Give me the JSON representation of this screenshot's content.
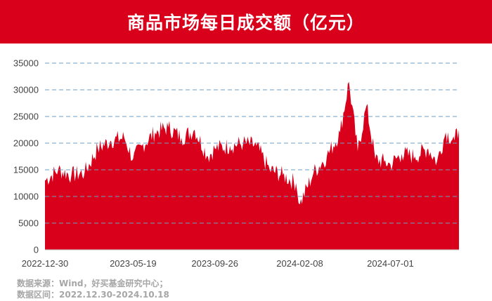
{
  "title": "商品市场每日成交额（亿元）",
  "source_lines": [
    "数据来源：Wind，好买基金研究中心；",
    "数据区间：2022.12.30-2024.10.18"
  ],
  "colors": {
    "title_bg": "#d9001b",
    "area": "#d9001b",
    "grid": "#6f9fc0",
    "axis_text": "#444444",
    "source_text": "#a6a6a6"
  },
  "chart_data": {
    "type": "area",
    "title": "商品市场每日成交额（亿元）",
    "xlabel": "",
    "ylabel": "",
    "ylim": [
      0,
      35000
    ],
    "y_ticks": [
      0,
      5000,
      10000,
      15000,
      20000,
      25000,
      30000,
      35000
    ],
    "x_tick_labels": [
      "2022-12-30",
      "2023-05-19",
      "2023-09-26",
      "2024-02-08",
      "2024-07-01"
    ],
    "x_range": [
      "2022-12-30",
      "2024-10-18"
    ],
    "grid": "horizontal dashed",
    "legend": "none",
    "series": [
      {
        "x": [
          "2022-12-30",
          "2023-01-20",
          "2023-02-10",
          "2023-03-03",
          "2023-03-24",
          "2023-04-14",
          "2023-05-05",
          "2023-05-19",
          "2023-06-02",
          "2023-06-23",
          "2023-07-14",
          "2023-08-04",
          "2023-08-25",
          "2023-09-15",
          "2023-09-26",
          "2023-10-20",
          "2023-11-10",
          "2023-12-01",
          "2023-12-22",
          "2024-01-12",
          "2024-02-02",
          "2024-02-08",
          "2024-03-01",
          "2024-03-22",
          "2024-04-12",
          "2024-04-26",
          "2024-05-10",
          "2024-05-24",
          "2024-06-07",
          "2024-06-21",
          "2024-07-01",
          "2024-07-19",
          "2024-08-09",
          "2024-08-30",
          "2024-09-13",
          "2024-09-27",
          "2024-10-11",
          "2024-10-18"
        ],
        "values": [
          13000,
          15000,
          14000,
          14500,
          19000,
          20500,
          21000,
          17000,
          19500,
          22000,
          23000,
          21000,
          22500,
          17500,
          19000,
          19500,
          20000,
          19500,
          15000,
          14000,
          12500,
          8500,
          14500,
          17500,
          22000,
          31500,
          18500,
          27000,
          17000,
          16500,
          16000,
          18000,
          17500,
          19000,
          16500,
          22000,
          20500,
          22500
        ]
      }
    ]
  }
}
